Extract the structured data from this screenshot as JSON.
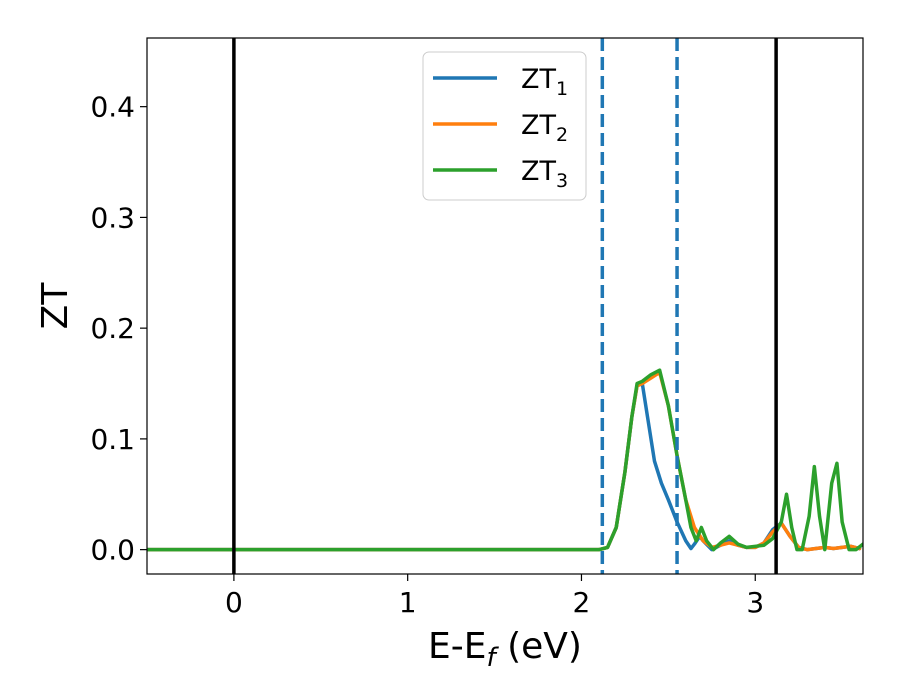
{
  "chart_data": {
    "type": "line",
    "xlabel_main": "E-E",
    "xlabel_sub": "f",
    "xlabel_unit": " (eV)",
    "ylabel": "ZT",
    "xlim": [
      -0.5,
      3.62
    ],
    "ylim": [
      -0.022,
      0.462
    ],
    "xticks": [
      0,
      1,
      2,
      3
    ],
    "xtick_labels": [
      "0",
      "1",
      "2",
      "3"
    ],
    "yticks": [
      0.0,
      0.1,
      0.2,
      0.3,
      0.4
    ],
    "ytick_labels": [
      "0.0",
      "0.1",
      "0.2",
      "0.3",
      "0.4"
    ],
    "grid": false,
    "legend_position": "top-center",
    "vlines": [
      {
        "x": 0.0,
        "style": "solid",
        "color": "#000000"
      },
      {
        "x": 3.12,
        "style": "solid",
        "color": "#000000"
      },
      {
        "x": 2.12,
        "style": "dashed",
        "color": "#1f77b4"
      },
      {
        "x": 2.55,
        "style": "dashed",
        "color": "#1f77b4"
      }
    ],
    "series": [
      {
        "name_main": "ZT",
        "name_sub": "1",
        "color": "#1f77b4",
        "x": [
          -0.5,
          2.1,
          2.15,
          2.2,
          2.25,
          2.29,
          2.32,
          2.35,
          2.38,
          2.42,
          2.46,
          2.5,
          2.55,
          2.6,
          2.63,
          2.65,
          2.68,
          2.7,
          2.75,
          2.8,
          2.85,
          2.9,
          2.95,
          3.0,
          3.05,
          3.1,
          3.15,
          3.2,
          3.25,
          3.3,
          3.35,
          3.4,
          3.45,
          3.5,
          3.55,
          3.6
        ],
        "y": [
          0.0,
          0.0,
          0.002,
          0.02,
          0.07,
          0.12,
          0.148,
          0.15,
          0.12,
          0.08,
          0.06,
          0.045,
          0.025,
          0.008,
          0.001,
          0.005,
          0.012,
          0.008,
          0.0,
          0.004,
          0.008,
          0.004,
          0.002,
          0.002,
          0.006,
          0.018,
          0.024,
          0.012,
          0.002,
          0.0,
          0.001,
          0.002,
          0.001,
          0.002,
          0.003,
          0.001
        ]
      },
      {
        "name_main": "ZT",
        "name_sub": "2",
        "color": "#ff7f0e",
        "x": [
          -0.5,
          2.1,
          2.15,
          2.2,
          2.25,
          2.29,
          2.32,
          2.35,
          2.4,
          2.45,
          2.5,
          2.55,
          2.6,
          2.65,
          2.7,
          2.75,
          2.8,
          2.85,
          2.9,
          2.95,
          3.0,
          3.05,
          3.1,
          3.15,
          3.2,
          3.25,
          3.3,
          3.35,
          3.4,
          3.45,
          3.5,
          3.55,
          3.6
        ],
        "y": [
          0.0,
          0.0,
          0.002,
          0.02,
          0.07,
          0.12,
          0.148,
          0.15,
          0.155,
          0.16,
          0.13,
          0.085,
          0.045,
          0.02,
          0.008,
          0.002,
          0.004,
          0.006,
          0.004,
          0.002,
          0.002,
          0.006,
          0.016,
          0.024,
          0.012,
          0.002,
          0.0,
          0.001,
          0.002,
          0.001,
          0.002,
          0.003,
          0.001
        ]
      },
      {
        "name_main": "ZT",
        "name_sub": "3",
        "color": "#2ca02c",
        "x": [
          -0.5,
          2.1,
          2.15,
          2.2,
          2.25,
          2.29,
          2.32,
          2.35,
          2.4,
          2.45,
          2.5,
          2.55,
          2.6,
          2.63,
          2.66,
          2.69,
          2.72,
          2.76,
          2.8,
          2.85,
          2.9,
          2.95,
          3.0,
          3.05,
          3.1,
          3.15,
          3.18,
          3.21,
          3.24,
          3.27,
          3.31,
          3.34,
          3.37,
          3.4,
          3.44,
          3.47,
          3.5,
          3.54,
          3.58,
          3.62
        ],
        "y": [
          0.0,
          0.0,
          0.002,
          0.02,
          0.07,
          0.12,
          0.15,
          0.152,
          0.158,
          0.162,
          0.13,
          0.085,
          0.045,
          0.02,
          0.008,
          0.02,
          0.008,
          0.0,
          0.006,
          0.012,
          0.005,
          0.002,
          0.003,
          0.004,
          0.01,
          0.025,
          0.05,
          0.02,
          0.0,
          0.0,
          0.03,
          0.075,
          0.03,
          0.0,
          0.06,
          0.078,
          0.025,
          0.0,
          0.0,
          0.005
        ]
      }
    ]
  }
}
